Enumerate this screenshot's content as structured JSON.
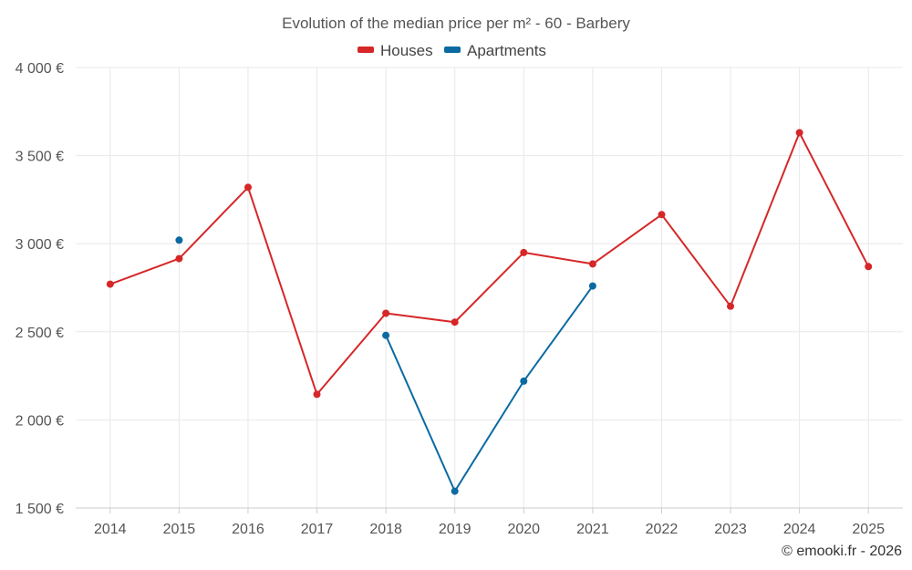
{
  "chart_data": {
    "type": "line",
    "title": "Evolution of the median price per m² - 60 - Barbery",
    "categories": [
      "2014",
      "2015",
      "2016",
      "2017",
      "2018",
      "2019",
      "2020",
      "2021",
      "2022",
      "2023",
      "2024",
      "2025"
    ],
    "y_ticks": [
      1500,
      2000,
      2500,
      3000,
      3500,
      4000
    ],
    "y_tick_labels": [
      "1 500 €",
      "2 000 €",
      "2 500 €",
      "3 000 €",
      "3 500 €",
      "4 000 €"
    ],
    "ylim": [
      1500,
      4000
    ],
    "grid": true,
    "legend_position": "top-center",
    "series": [
      {
        "name": "Houses",
        "color": "#d62728",
        "values": [
          2770,
          2915,
          3320,
          2145,
          2605,
          2555,
          2950,
          2885,
          3165,
          2645,
          3630,
          2870
        ]
      },
      {
        "name": "Apartments",
        "color": "#0b6aa2",
        "values": [
          null,
          3020,
          null,
          null,
          2480,
          1595,
          2220,
          2760,
          null,
          null,
          null,
          null
        ]
      }
    ]
  },
  "credit": "© emooki.fr - 2026"
}
